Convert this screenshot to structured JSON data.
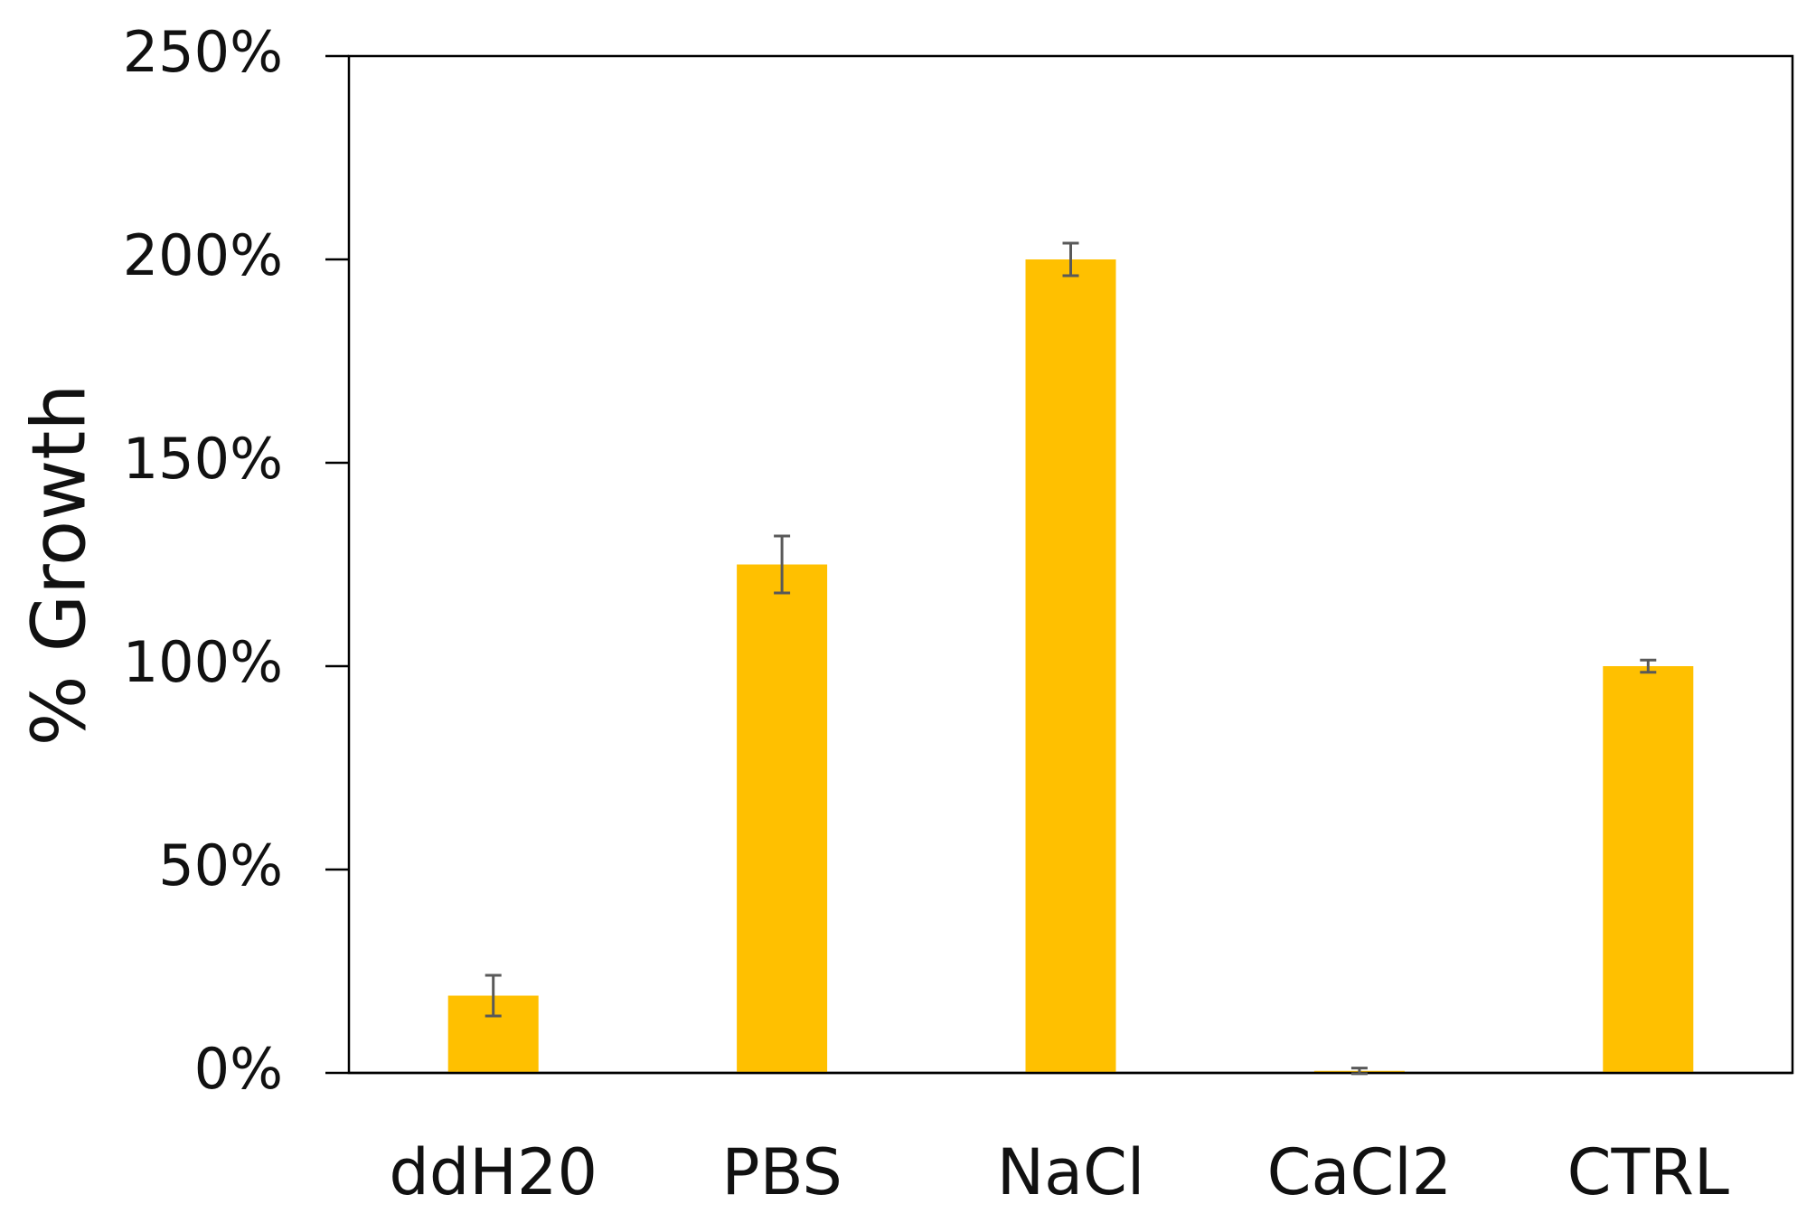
{
  "chart_data": {
    "type": "bar",
    "y_label": "% Growth",
    "categories": [
      "ddH20",
      "PBS",
      "NaCl",
      "CaCl2",
      "CTRL"
    ],
    "values": [
      19,
      125,
      200,
      0.5,
      100
    ],
    "errors": [
      5,
      7,
      4,
      0.7,
      1.5
    ],
    "color": "#ffc000",
    "error_color": "#595959",
    "ylim": [
      0,
      250
    ],
    "yticks": [
      {
        "value": 0,
        "label": "0%"
      },
      {
        "value": 50,
        "label": "50%"
      },
      {
        "value": 100,
        "label": "100%"
      },
      {
        "value": 150,
        "label": "150%"
      },
      {
        "value": 200,
        "label": "200%"
      },
      {
        "value": 250,
        "label": "250%"
      }
    ]
  }
}
